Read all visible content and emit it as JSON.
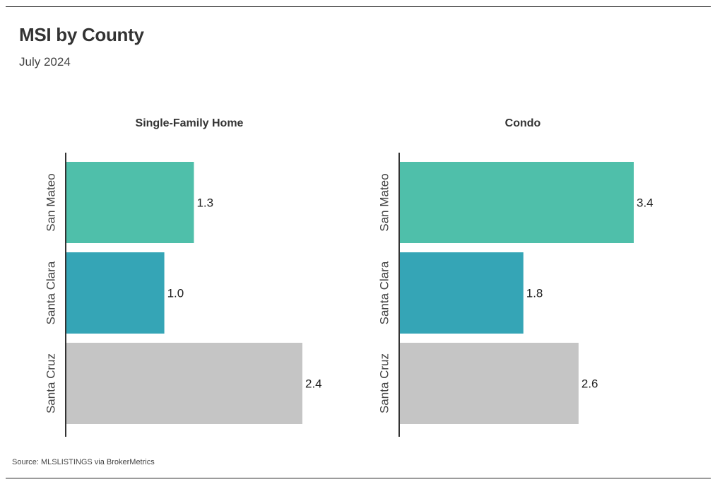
{
  "header": {
    "title": "MSI by County",
    "subtitle": "July 2024"
  },
  "footer": {
    "source": "Source:  MLSLISTINGS via BrokerMetrics"
  },
  "colors": {
    "San Mateo": "#4fbfaa",
    "Santa Clara": "#35a5b6",
    "Santa Cruz": "#c5c5c5",
    "axis": "#333333"
  },
  "chart_data": [
    {
      "type": "bar",
      "orientation": "horizontal",
      "title": "Single-Family Home",
      "categories": [
        "San Mateo",
        "Santa Clara",
        "Santa Cruz"
      ],
      "values": [
        1.3,
        1.0,
        2.4
      ],
      "value_labels": [
        "1.3",
        "1.0",
        "2.4"
      ],
      "xlim": [
        0,
        2.4
      ],
      "grid": false,
      "legend": "none"
    },
    {
      "type": "bar",
      "orientation": "horizontal",
      "title": "Condo",
      "categories": [
        "San Mateo",
        "Santa Clara",
        "Santa Cruz"
      ],
      "values": [
        3.4,
        1.8,
        2.6
      ],
      "value_labels": [
        "3.4",
        "1.8",
        "2.6"
      ],
      "xlim": [
        0,
        3.4
      ],
      "grid": false,
      "legend": "none"
    }
  ]
}
